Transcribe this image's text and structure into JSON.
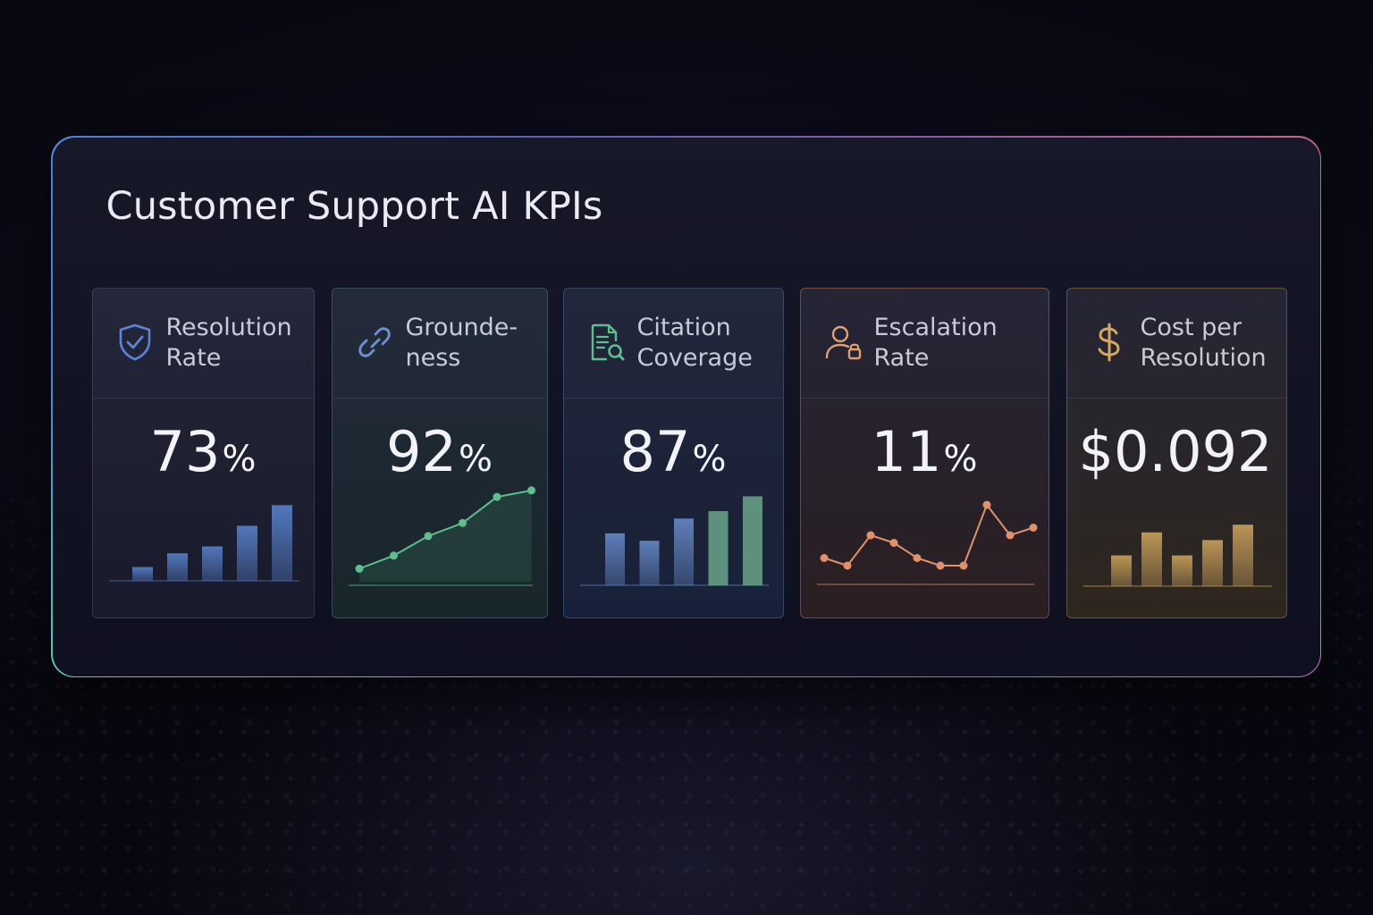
{
  "title": "Customer Support AI KPIs",
  "colors": {
    "resolution": "#5b86d6",
    "groundedness": "#5fbf8c",
    "citation_bar": "#6a8fd0",
    "citation_bar_green": "#6fae8e",
    "escalation": "#e0906a",
    "cost": "#d6a85e"
  },
  "cards": [
    {
      "label": "Resolution Rate",
      "value": "73",
      "unit": "%",
      "icon": "shield-check-icon"
    },
    {
      "label": "Grounde-ness",
      "value": "92",
      "unit": "%",
      "icon": "link-icon"
    },
    {
      "label": "Citation Coverage",
      "value": "87",
      "unit": "%",
      "icon": "document-search-icon"
    },
    {
      "label": "Escalation Rate",
      "value": "11",
      "unit": "%",
      "icon": "user-lock-icon"
    },
    {
      "label": "Cost per Resolution",
      "value": "$0.092",
      "unit": "",
      "icon": "dollar-icon"
    }
  ],
  "chart_data": [
    {
      "type": "bar",
      "values": [
        2,
        4,
        5,
        8,
        11
      ]
    },
    {
      "type": "line",
      "values": [
        2,
        4,
        7,
        9,
        13,
        14
      ]
    },
    {
      "type": "bar",
      "values": [
        7,
        6,
        9,
        10,
        12
      ]
    },
    {
      "type": "line",
      "values": [
        3,
        2,
        6,
        5,
        3,
        2,
        2,
        10,
        6,
        7
      ]
    },
    {
      "type": "bar",
      "values": [
        4,
        7,
        4,
        6,
        8
      ]
    }
  ]
}
